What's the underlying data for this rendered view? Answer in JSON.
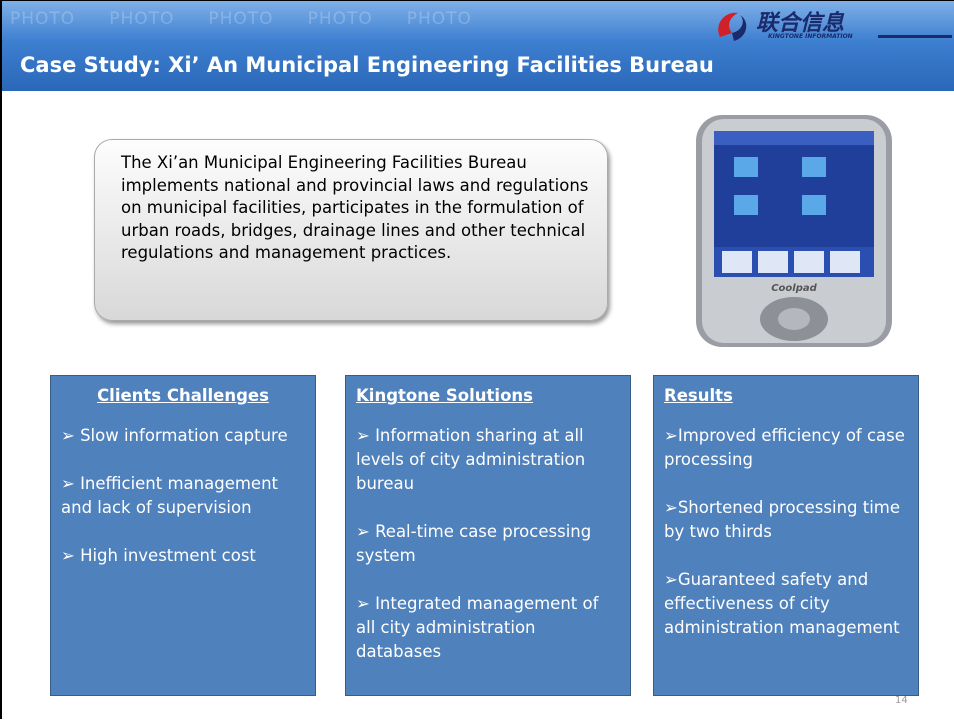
{
  "header": {
    "title": "Case Study: Xi’ An Municipal Engineering Facilities Bureau",
    "logo": "联合信息",
    "logo_sub": "KINGTONE INFORMATION",
    "watermark": [
      "PHOTO",
      "PHOTO",
      "PHOTO",
      "PHOTO",
      "PHOTO"
    ]
  },
  "intro": "The Xi’an Municipal Engineering Facilities Bureau implements national and provincial laws and regulations on municipal facilities, participates in the formulation of urban roads, bridges, drainage lines and other technical regulations and management practices.",
  "phone_brand": "Coolpad",
  "columns": [
    {
      "heading": "Clients Challenges",
      "items": [
        "➢ Slow information capture",
        "➢ Inefficient management and lack of supervision",
        "➢ High investment cost"
      ]
    },
    {
      "heading": "Kingtone Solutions",
      "items": [
        "➢ Information sharing at all levels of city administration bureau",
        "➢ Real-time case processing system",
        "➢ Integrated management of all  city administration databases"
      ]
    },
    {
      "heading": "Results",
      "items": [
        "➢Improved efficiency of case processing",
        "➢Shortened processing time by two thirds",
        "➢Guaranteed safety  and effectiveness of city administration management"
      ]
    }
  ],
  "page_number": "14"
}
